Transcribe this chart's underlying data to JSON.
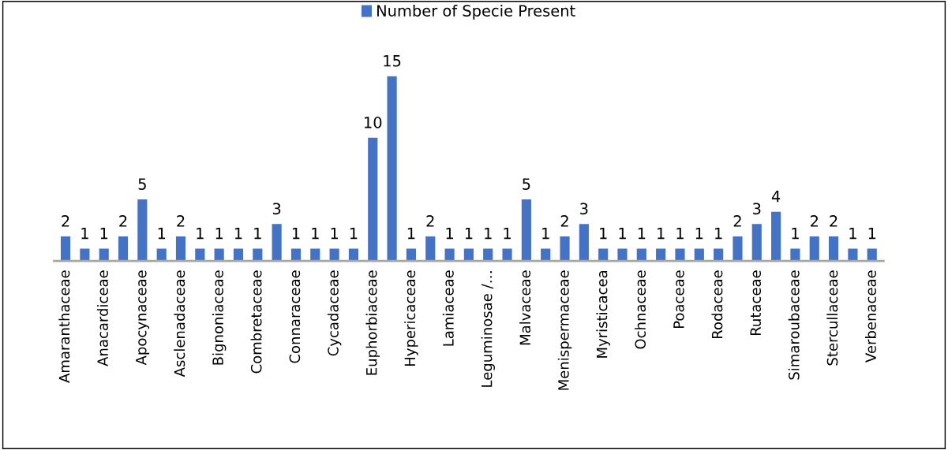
{
  "chart_data": {
    "type": "bar",
    "categories": [
      "Amaranthaceae",
      null,
      "Anacardiceae",
      null,
      "Apocynaceae",
      null,
      "Asclenadaceae",
      null,
      "Bignoniaceae",
      null,
      "Combretaceae",
      null,
      "Connaraceae",
      null,
      "Cycadaceae",
      null,
      "Euphorbiaceae",
      null,
      "Hypericaceae",
      null,
      "Lamiaceae",
      null,
      "Leguminosae /…",
      null,
      "Malvaceae",
      null,
      "Menispermaceae",
      null,
      "Myristicacea",
      null,
      "Ochnaceae",
      null,
      "Poaceae",
      null,
      "Rodaceae",
      null,
      "Rutaceae",
      null,
      "Simaroubaceae",
      null,
      "Stercullaceae",
      null,
      "Verbenaceae"
    ],
    "series": [
      {
        "name": "Number of Specie Present",
        "color": "#4472c4",
        "values": [
          2,
          1,
          1,
          2,
          5,
          1,
          2,
          1,
          1,
          1,
          1,
          3,
          1,
          1,
          1,
          1,
          10,
          15,
          1,
          2,
          1,
          1,
          1,
          1,
          5,
          1,
          2,
          3,
          1,
          1,
          1,
          1,
          1,
          1,
          1,
          2,
          3,
          4,
          1,
          2,
          2,
          1,
          1
        ]
      }
    ],
    "data_labels": true,
    "legend": "top",
    "grid": false,
    "tick_labels": "x"
  }
}
